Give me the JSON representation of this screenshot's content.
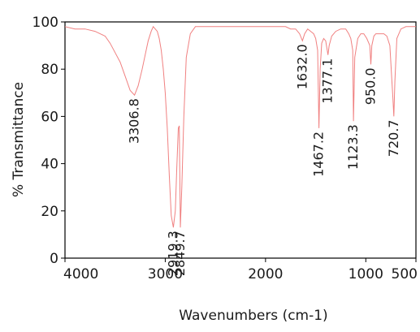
{
  "chart_data": {
    "type": "line",
    "xlabel": "Wavenumbers (cm-1)",
    "ylabel": "% Transmittance",
    "xlim": [
      4000,
      500
    ],
    "ylim": [
      0,
      100
    ],
    "x_ticks": [
      4000,
      3000,
      2000,
      1000,
      500
    ],
    "x_tick_labels": [
      "4000",
      "3000",
      "2000",
      "1000",
      "500"
    ],
    "y_ticks": [
      0,
      20,
      40,
      60,
      80,
      100
    ],
    "y_tick_labels": [
      "0",
      "20",
      "40",
      "60",
      "80",
      "100"
    ],
    "grid": false,
    "line_color": "#f08080",
    "series": [
      {
        "x": [
          4000,
          3900,
          3800,
          3700,
          3650,
          3600,
          3550,
          3500,
          3450,
          3400,
          3350,
          3306.8,
          3270,
          3230,
          3200,
          3170,
          3140,
          3120,
          3100,
          3080,
          3060,
          3040,
          3020,
          3000,
          2980,
          2960,
          2940,
          2919.3,
          2900,
          2885,
          2870,
          2860,
          2849.7,
          2835,
          2815,
          2790,
          2750,
          2700,
          2600,
          2500,
          2400,
          2300,
          2200,
          2100,
          2000,
          1900,
          1800,
          1750,
          1700,
          1660,
          1632,
          1610,
          1580,
          1550,
          1520,
          1500,
          1480,
          1467.2,
          1455,
          1440,
          1420,
          1400,
          1385,
          1377.1,
          1365,
          1340,
          1300,
          1250,
          1200,
          1170,
          1150,
          1130,
          1123.3,
          1110,
          1080,
          1050,
          1020,
          990,
          970,
          960,
          950,
          940,
          920,
          900,
          860,
          820,
          790,
          760,
          740,
          730,
          720.7,
          710,
          690,
          650,
          600,
          550,
          500
        ],
        "y": [
          98,
          97,
          97,
          96,
          95,
          94,
          91,
          87,
          83,
          77,
          71,
          69,
          73,
          80,
          86,
          92,
          96,
          98,
          97,
          96,
          93,
          88,
          80,
          70,
          55,
          35,
          18,
          13,
          20,
          38,
          55,
          56,
          13,
          30,
          60,
          85,
          95,
          98,
          98,
          98,
          98,
          98,
          98,
          98,
          98,
          98,
          98,
          97,
          97,
          95,
          92,
          95,
          97,
          96,
          95,
          93,
          88,
          55,
          80,
          91,
          93,
          92,
          88,
          86,
          90,
          94,
          96,
          97,
          97,
          95,
          93,
          88,
          58,
          85,
          93,
          95,
          95,
          93,
          91,
          90,
          82,
          90,
          94,
          95,
          95,
          95,
          94,
          90,
          75,
          68,
          60,
          75,
          93,
          97,
          98,
          98,
          98
        ]
      }
    ],
    "annotations": [
      {
        "text": "3306.8",
        "x": 3306.8,
        "y": 69
      },
      {
        "text": "2919.3",
        "x": 2919.3,
        "y": 13
      },
      {
        "text": "2849.7",
        "x": 2849.7,
        "y": 13
      },
      {
        "text": "1632.0",
        "x": 1632.0,
        "y": 92
      },
      {
        "text": "1467.2",
        "x": 1467.2,
        "y": 55
      },
      {
        "text": "1377.1",
        "x": 1377.1,
        "y": 86
      },
      {
        "text": "1123.3",
        "x": 1123.3,
        "y": 58
      },
      {
        "text": "950.0",
        "x": 950.0,
        "y": 82
      },
      {
        "text": "720.7",
        "x": 720.7,
        "y": 60
      }
    ]
  }
}
